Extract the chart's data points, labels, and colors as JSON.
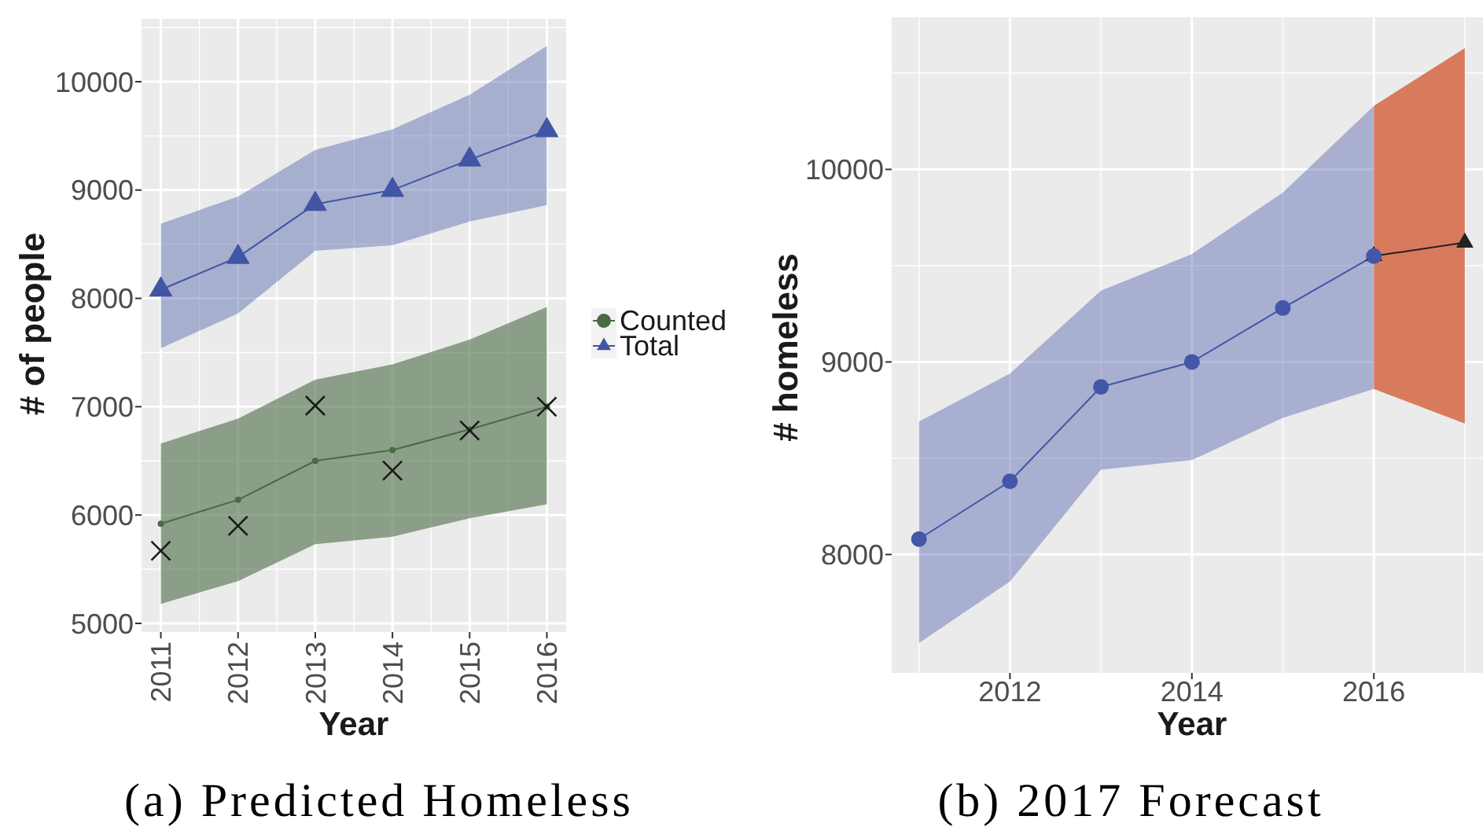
{
  "chart_data": [
    {
      "type": "line",
      "title": "(a) Predicted Homeless",
      "xlabel": "Year",
      "ylabel": "# of people",
      "x": [
        2011,
        2012,
        2013,
        2014,
        2015,
        2016
      ],
      "xlim": [
        2010.75,
        2016.25
      ],
      "xticks": [
        2011,
        {
          "value": 2011.5,
          "label": null
        },
        2012,
        {
          "value": 2012.5,
          "label": null
        },
        2013,
        {
          "value": 2013.5,
          "label": null
        },
        2014,
        {
          "value": 2014.5,
          "label": null
        },
        2015,
        {
          "value": 2015.5,
          "label": null
        },
        2016
      ],
      "ylim": [
        4920,
        10580
      ],
      "yticks": [
        5000,
        {
          "value": 5500,
          "label": null
        },
        6000,
        {
          "value": 6500,
          "label": null
        },
        7000,
        {
          "value": 7500,
          "label": null
        },
        8000,
        {
          "value": 8500,
          "label": null
        },
        9000,
        {
          "value": 9500,
          "label": null
        },
        10000,
        {
          "value": 10500,
          "label": null
        }
      ],
      "grid": true,
      "legend": "right",
      "series": [
        {
          "name": "Counted",
          "color": "#4b6a44",
          "marker": "circle",
          "values": [
            5920,
            6140,
            6500,
            6600,
            6790,
            7000
          ],
          "lower": [
            5180,
            5390,
            5730,
            5800,
            5970,
            6100
          ],
          "upper": [
            6660,
            6890,
            7250,
            7390,
            7620,
            7920
          ]
        },
        {
          "name": "Total",
          "color": "#4254a4",
          "marker": "triangle",
          "values": [
            8080,
            8380,
            8870,
            9000,
            9280,
            9550
          ],
          "lower": [
            7540,
            7860,
            8440,
            8490,
            8710,
            8860
          ],
          "upper": [
            8690,
            8940,
            9370,
            9560,
            9880,
            10330
          ]
        },
        {
          "type": "scatter",
          "color": "#1a1a1a",
          "marker": "cross",
          "values": [
            5670,
            5900,
            7010,
            6410,
            6780,
            7000
          ]
        }
      ]
    },
    {
      "type": "line",
      "title": "(b) 2017 Forecast",
      "xlabel": "Year",
      "ylabel": "# homeless",
      "xlim": [
        2010.7,
        2017.2
      ],
      "xticks": [
        {
          "value": 2011,
          "label": null
        },
        2012,
        {
          "value": 2013,
          "label": null
        },
        2014,
        {
          "value": 2015,
          "label": null
        },
        2016,
        {
          "value": 2017,
          "label": null
        }
      ],
      "ylim": [
        7385,
        10790
      ],
      "yticks": [
        8000,
        {
          "value": 8500,
          "label": null
        },
        9000,
        {
          "value": 9500,
          "label": null
        },
        10000,
        {
          "value": 10500,
          "label": null
        }
      ],
      "grid": true,
      "series": [
        {
          "color": "#4356a8",
          "marker": "circle",
          "x": [
            2011,
            2012,
            2013,
            2014,
            2015,
            2016
          ],
          "values": [
            8080,
            8380,
            8870,
            9000,
            9280,
            9550
          ],
          "lower": [
            7540,
            7860,
            8440,
            8490,
            8710,
            8860
          ],
          "upper": [
            8690,
            8940,
            9370,
            9560,
            9880,
            10330
          ]
        },
        {
          "color": "#222222",
          "marker": "triangle",
          "x": [
            2016,
            2017
          ],
          "values": [
            9550,
            9620
          ],
          "lower": [
            8860,
            8680
          ],
          "upper": [
            10330,
            10630
          ]
        }
      ]
    }
  ]
}
